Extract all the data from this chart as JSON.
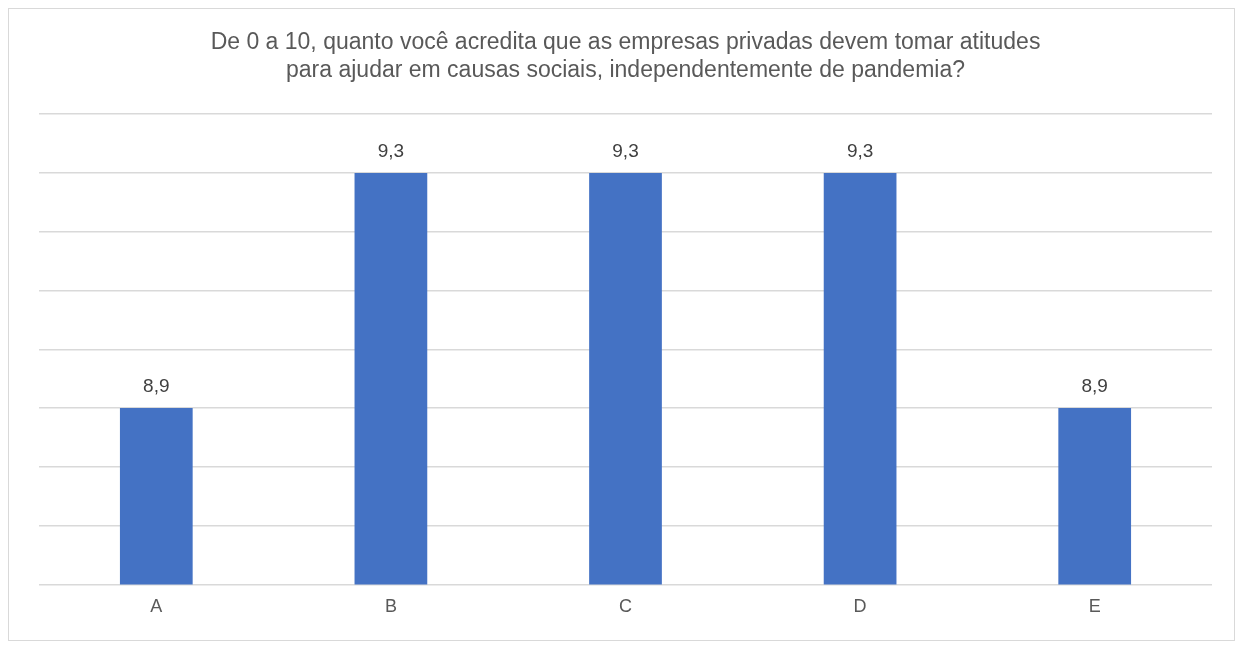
{
  "chart_data": {
    "type": "bar",
    "title": [
      "De 0 a 10, quanto você acredita que as empresas privadas devem tomar atitudes",
      "para ajudar em causas sociais, independentemente de pandemia?"
    ],
    "categories": [
      "A",
      "B",
      "C",
      "D",
      "E"
    ],
    "values": [
      8.9,
      9.3,
      9.3,
      9.3,
      8.9
    ],
    "value_labels": [
      "8,9",
      "9,3",
      "9,3",
      "9,3",
      "8,9"
    ],
    "color": "#4472c4",
    "ylim": [
      8.6,
      9.4
    ],
    "yticks": [
      {
        "value": 8.6,
        "label": null
      },
      {
        "value": 8.7,
        "label": null
      },
      {
        "value": 8.8,
        "label": null
      },
      {
        "value": 8.9,
        "label": null
      },
      {
        "value": 9.0,
        "label": null
      },
      {
        "value": 9.1,
        "label": null
      },
      {
        "value": 9.2,
        "label": null
      },
      {
        "value": 9.3,
        "label": null
      },
      {
        "value": 9.4,
        "label": null
      }
    ],
    "tick_labels": "x",
    "grid": "y",
    "legend": false
  }
}
